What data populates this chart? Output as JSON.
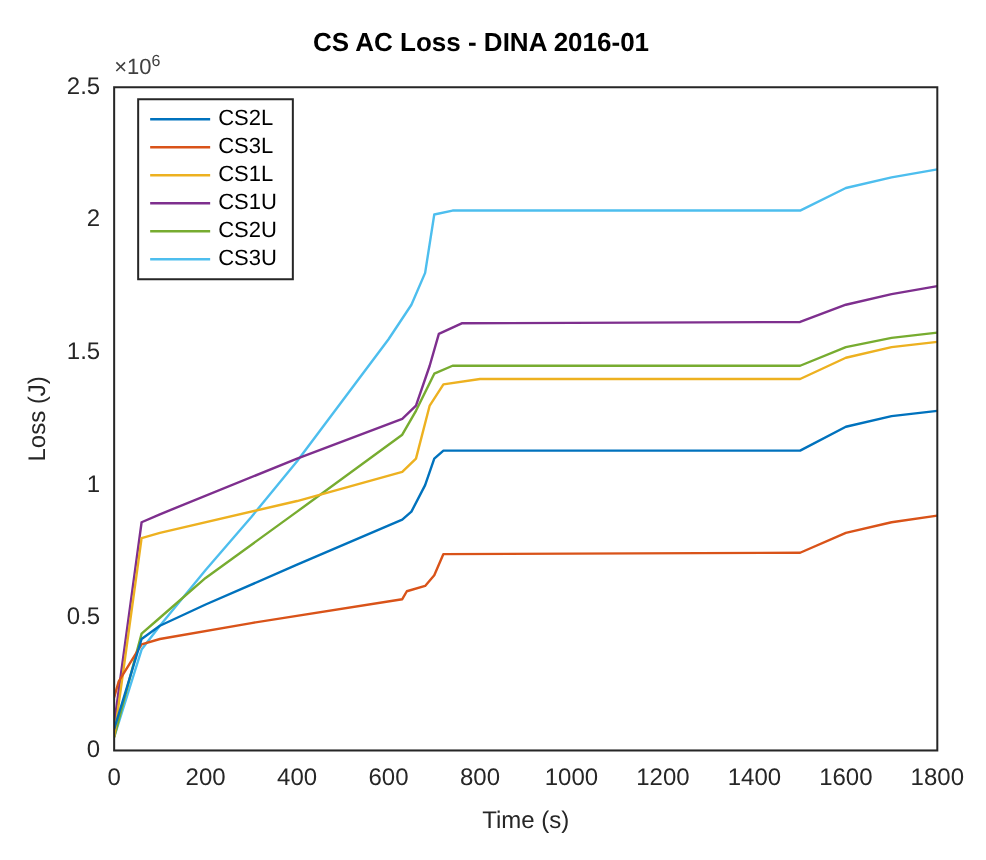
{
  "chart_data": {
    "type": "line",
    "title": "CS AC Loss - DINA 2016-01",
    "xlabel": "Time (s)",
    "ylabel": "Loss (J)",
    "annotations": [
      "×10$^{6}$"
    ],
    "xlim": [
      0,
      1800
    ],
    "xticks": [
      0,
      200,
      400,
      600,
      800,
      1000,
      1200,
      1400,
      1600,
      1800
    ],
    "ylim": [
      0,
      2.5
    ],
    "yticks": [
      0,
      0.5,
      1,
      1.5,
      2,
      2.5
    ],
    "grid": false,
    "legend": "top left",
    "marker": "none",
    "line_style": "solid",
    "series": [
      {
        "name": "CS2L",
        "color": "#0072bd",
        "x": [
          0,
          60,
          100,
          200,
          400,
          630,
          650,
          680,
          700,
          720,
          1500,
          1600,
          1700,
          1800
        ],
        "values": [
          0.08,
          0.42,
          0.47,
          0.55,
          0.7,
          0.87,
          0.9,
          1.0,
          1.1,
          1.13,
          1.13,
          1.22,
          1.26,
          1.28
        ]
      },
      {
        "name": "CS3L",
        "color": "#d95319",
        "x": [
          0,
          10,
          60,
          100,
          300,
          630,
          640,
          680,
          700,
          720,
          1500,
          1600,
          1700,
          1800
        ],
        "values": [
          0.2,
          0.26,
          0.4,
          0.42,
          0.48,
          0.57,
          0.6,
          0.62,
          0.66,
          0.74,
          0.745,
          0.82,
          0.86,
          0.885
        ]
      },
      {
        "name": "CS1L",
        "color": "#edb120",
        "x": [
          0,
          60,
          100,
          400,
          630,
          660,
          690,
          720,
          800,
          1500,
          1600,
          1700,
          1800
        ],
        "values": [
          0.05,
          0.8,
          0.82,
          0.94,
          1.05,
          1.1,
          1.3,
          1.38,
          1.4,
          1.4,
          1.48,
          1.52,
          1.54
        ]
      },
      {
        "name": "CS1U",
        "color": "#7e2f8e",
        "x": [
          0,
          60,
          100,
          400,
          630,
          660,
          690,
          710,
          760,
          1500,
          1600,
          1700,
          1800
        ],
        "values": [
          0.1,
          0.86,
          0.89,
          1.1,
          1.25,
          1.3,
          1.45,
          1.57,
          1.61,
          1.615,
          1.68,
          1.72,
          1.75
        ]
      },
      {
        "name": "CS2U",
        "color": "#77ac30",
        "x": [
          0,
          60,
          100,
          200,
          400,
          630,
          660,
          700,
          740,
          1500,
          1600,
          1700,
          1800
        ],
        "values": [
          0.05,
          0.44,
          0.5,
          0.65,
          0.9,
          1.19,
          1.28,
          1.42,
          1.45,
          1.45,
          1.52,
          1.555,
          1.575
        ]
      },
      {
        "name": "CS3U",
        "color": "#4dbeee",
        "x": [
          0,
          60,
          100,
          200,
          300,
          400,
          500,
          600,
          650,
          680,
          700,
          740,
          1500,
          1600,
          1700,
          1800
        ],
        "values": [
          0.05,
          0.38,
          0.47,
          0.68,
          0.88,
          1.09,
          1.32,
          1.55,
          1.68,
          1.8,
          2.02,
          2.035,
          2.035,
          2.12,
          2.16,
          2.19
        ]
      }
    ]
  }
}
